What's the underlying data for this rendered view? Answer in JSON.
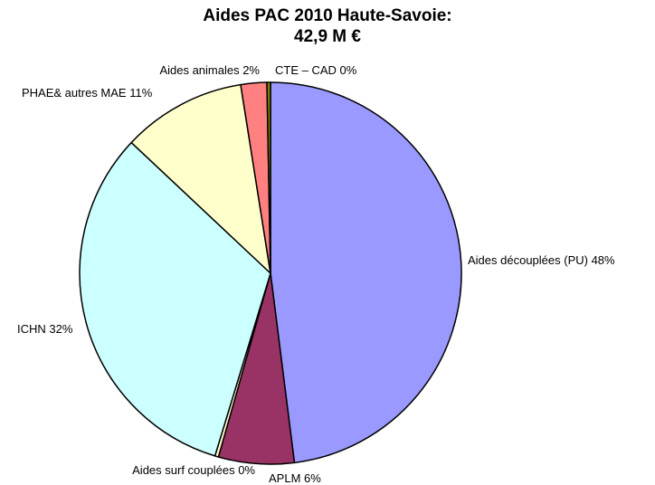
{
  "chart_data": {
    "type": "pie",
    "title": "Aides PAC 2010 Haute-Savoie:",
    "subtitle": "42,9 M €",
    "slices": [
      {
        "label": "Aides découplées (PU) 48%",
        "value": 48,
        "color": "#9999ff"
      },
      {
        "label": "APLM 6%",
        "value": 6.4,
        "color": "#993366"
      },
      {
        "label": "Aides surf couplées 0%",
        "value": 0.3,
        "color": "#ffffcc"
      },
      {
        "label": "ICHN 32%",
        "value": 32.3,
        "color": "#ccffff"
      },
      {
        "label": "PHAE& autres MAE 11%",
        "value": 10.5,
        "color": "#ffffcc"
      },
      {
        "label": "Aides animales 2%",
        "value": 2.2,
        "color": "#ff8080"
      },
      {
        "label": "CTE – CAD 0%",
        "value": 0.3,
        "color": "#808000"
      }
    ],
    "legend": "none"
  }
}
